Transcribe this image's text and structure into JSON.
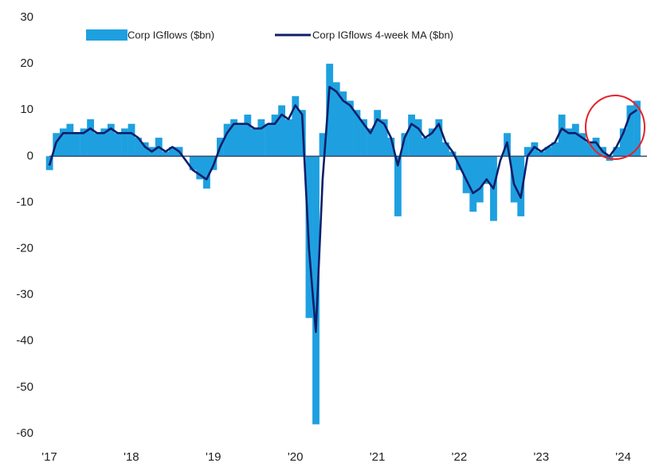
{
  "chart_data": {
    "type": "bar-line",
    "series": [
      {
        "name": "Corp IGflows ($bn)",
        "color": "#1ea0e0",
        "values": [
          -3,
          5,
          6,
          7,
          5,
          6,
          8,
          5,
          6,
          7,
          5,
          6,
          7,
          4,
          3,
          2,
          4,
          1,
          2,
          2,
          0,
          -3,
          -5,
          -7,
          -3,
          4,
          7,
          8,
          7,
          9,
          6,
          8,
          7,
          9,
          11,
          8,
          13,
          10,
          -35,
          -58,
          5,
          20,
          16,
          14,
          12,
          10,
          8,
          6,
          10,
          8,
          4,
          -13,
          5,
          9,
          8,
          4,
          6,
          8,
          3,
          1,
          -3,
          -8,
          -12,
          -10,
          -6,
          -14,
          0,
          5,
          -10,
          -13,
          2,
          3,
          1,
          2,
          3,
          9,
          6,
          7,
          5,
          3,
          4,
          2,
          -1,
          2,
          6,
          11,
          12
        ]
      },
      {
        "name": "Corp IGflows 4-week MA ($bn)",
        "color": "#0d1f6b",
        "values": [
          -2,
          3,
          5,
          5,
          5,
          5,
          6,
          5,
          5,
          6,
          5,
          5,
          5,
          4,
          2,
          1,
          2,
          1,
          2,
          1,
          -1,
          -3,
          -4,
          -5,
          -2,
          2,
          5,
          7,
          7,
          7,
          6,
          6,
          7,
          7,
          9,
          8,
          11,
          9,
          -20,
          -38,
          -5,
          15,
          14,
          12,
          11,
          9,
          7,
          5,
          8,
          7,
          4,
          -2,
          4,
          7,
          6,
          4,
          5,
          7,
          3,
          1,
          -2,
          -5,
          -8,
          -7,
          -5,
          -7,
          -1,
          3,
          -6,
          -9,
          0,
          2,
          1,
          2,
          3,
          6,
          5,
          5,
          4,
          3,
          3,
          1,
          0,
          2,
          5,
          9,
          10
        ]
      }
    ],
    "x": [
      2017,
      2017.083,
      2017.167,
      2017.25,
      2017.333,
      2017.417,
      2017.5,
      2017.583,
      2017.667,
      2017.75,
      2017.833,
      2017.917,
      2018,
      2018.083,
      2018.167,
      2018.25,
      2018.333,
      2018.417,
      2018.5,
      2018.583,
      2018.667,
      2018.75,
      2018.833,
      2018.917,
      2019,
      2019.083,
      2019.167,
      2019.25,
      2019.333,
      2019.417,
      2019.5,
      2019.583,
      2019.667,
      2019.75,
      2019.833,
      2019.917,
      2020,
      2020.083,
      2020.167,
      2020.25,
      2020.333,
      2020.417,
      2020.5,
      2020.583,
      2020.667,
      2020.75,
      2020.833,
      2020.917,
      2021,
      2021.083,
      2021.167,
      2021.25,
      2021.333,
      2021.417,
      2021.5,
      2021.583,
      2021.667,
      2021.75,
      2021.833,
      2021.917,
      2022,
      2022.083,
      2022.167,
      2022.25,
      2022.333,
      2022.417,
      2022.5,
      2022.583,
      2022.667,
      2022.75,
      2022.833,
      2022.917,
      2023,
      2023.083,
      2023.167,
      2023.25,
      2023.333,
      2023.417,
      2023.5,
      2023.583,
      2023.667,
      2023.75,
      2023.833,
      2023.917,
      2024,
      2024.083,
      2024.167
    ],
    "xlim": [
      2017,
      2024.29
    ],
    "xticks": [
      {
        "value": 2017,
        "label": "'17"
      },
      {
        "value": 2018,
        "label": "'18"
      },
      {
        "value": 2019,
        "label": "'19"
      },
      {
        "value": 2020,
        "label": "'20"
      },
      {
        "value": 2021,
        "label": "'21"
      },
      {
        "value": 2022,
        "label": "'22"
      },
      {
        "value": 2023,
        "label": "'23"
      },
      {
        "value": 2024,
        "label": "'24"
      }
    ],
    "ylim": [
      -60,
      30
    ],
    "yticks": [
      -60,
      -50,
      -40,
      -30,
      -20,
      -10,
      0,
      10,
      20,
      30
    ],
    "grid": false
  }
}
